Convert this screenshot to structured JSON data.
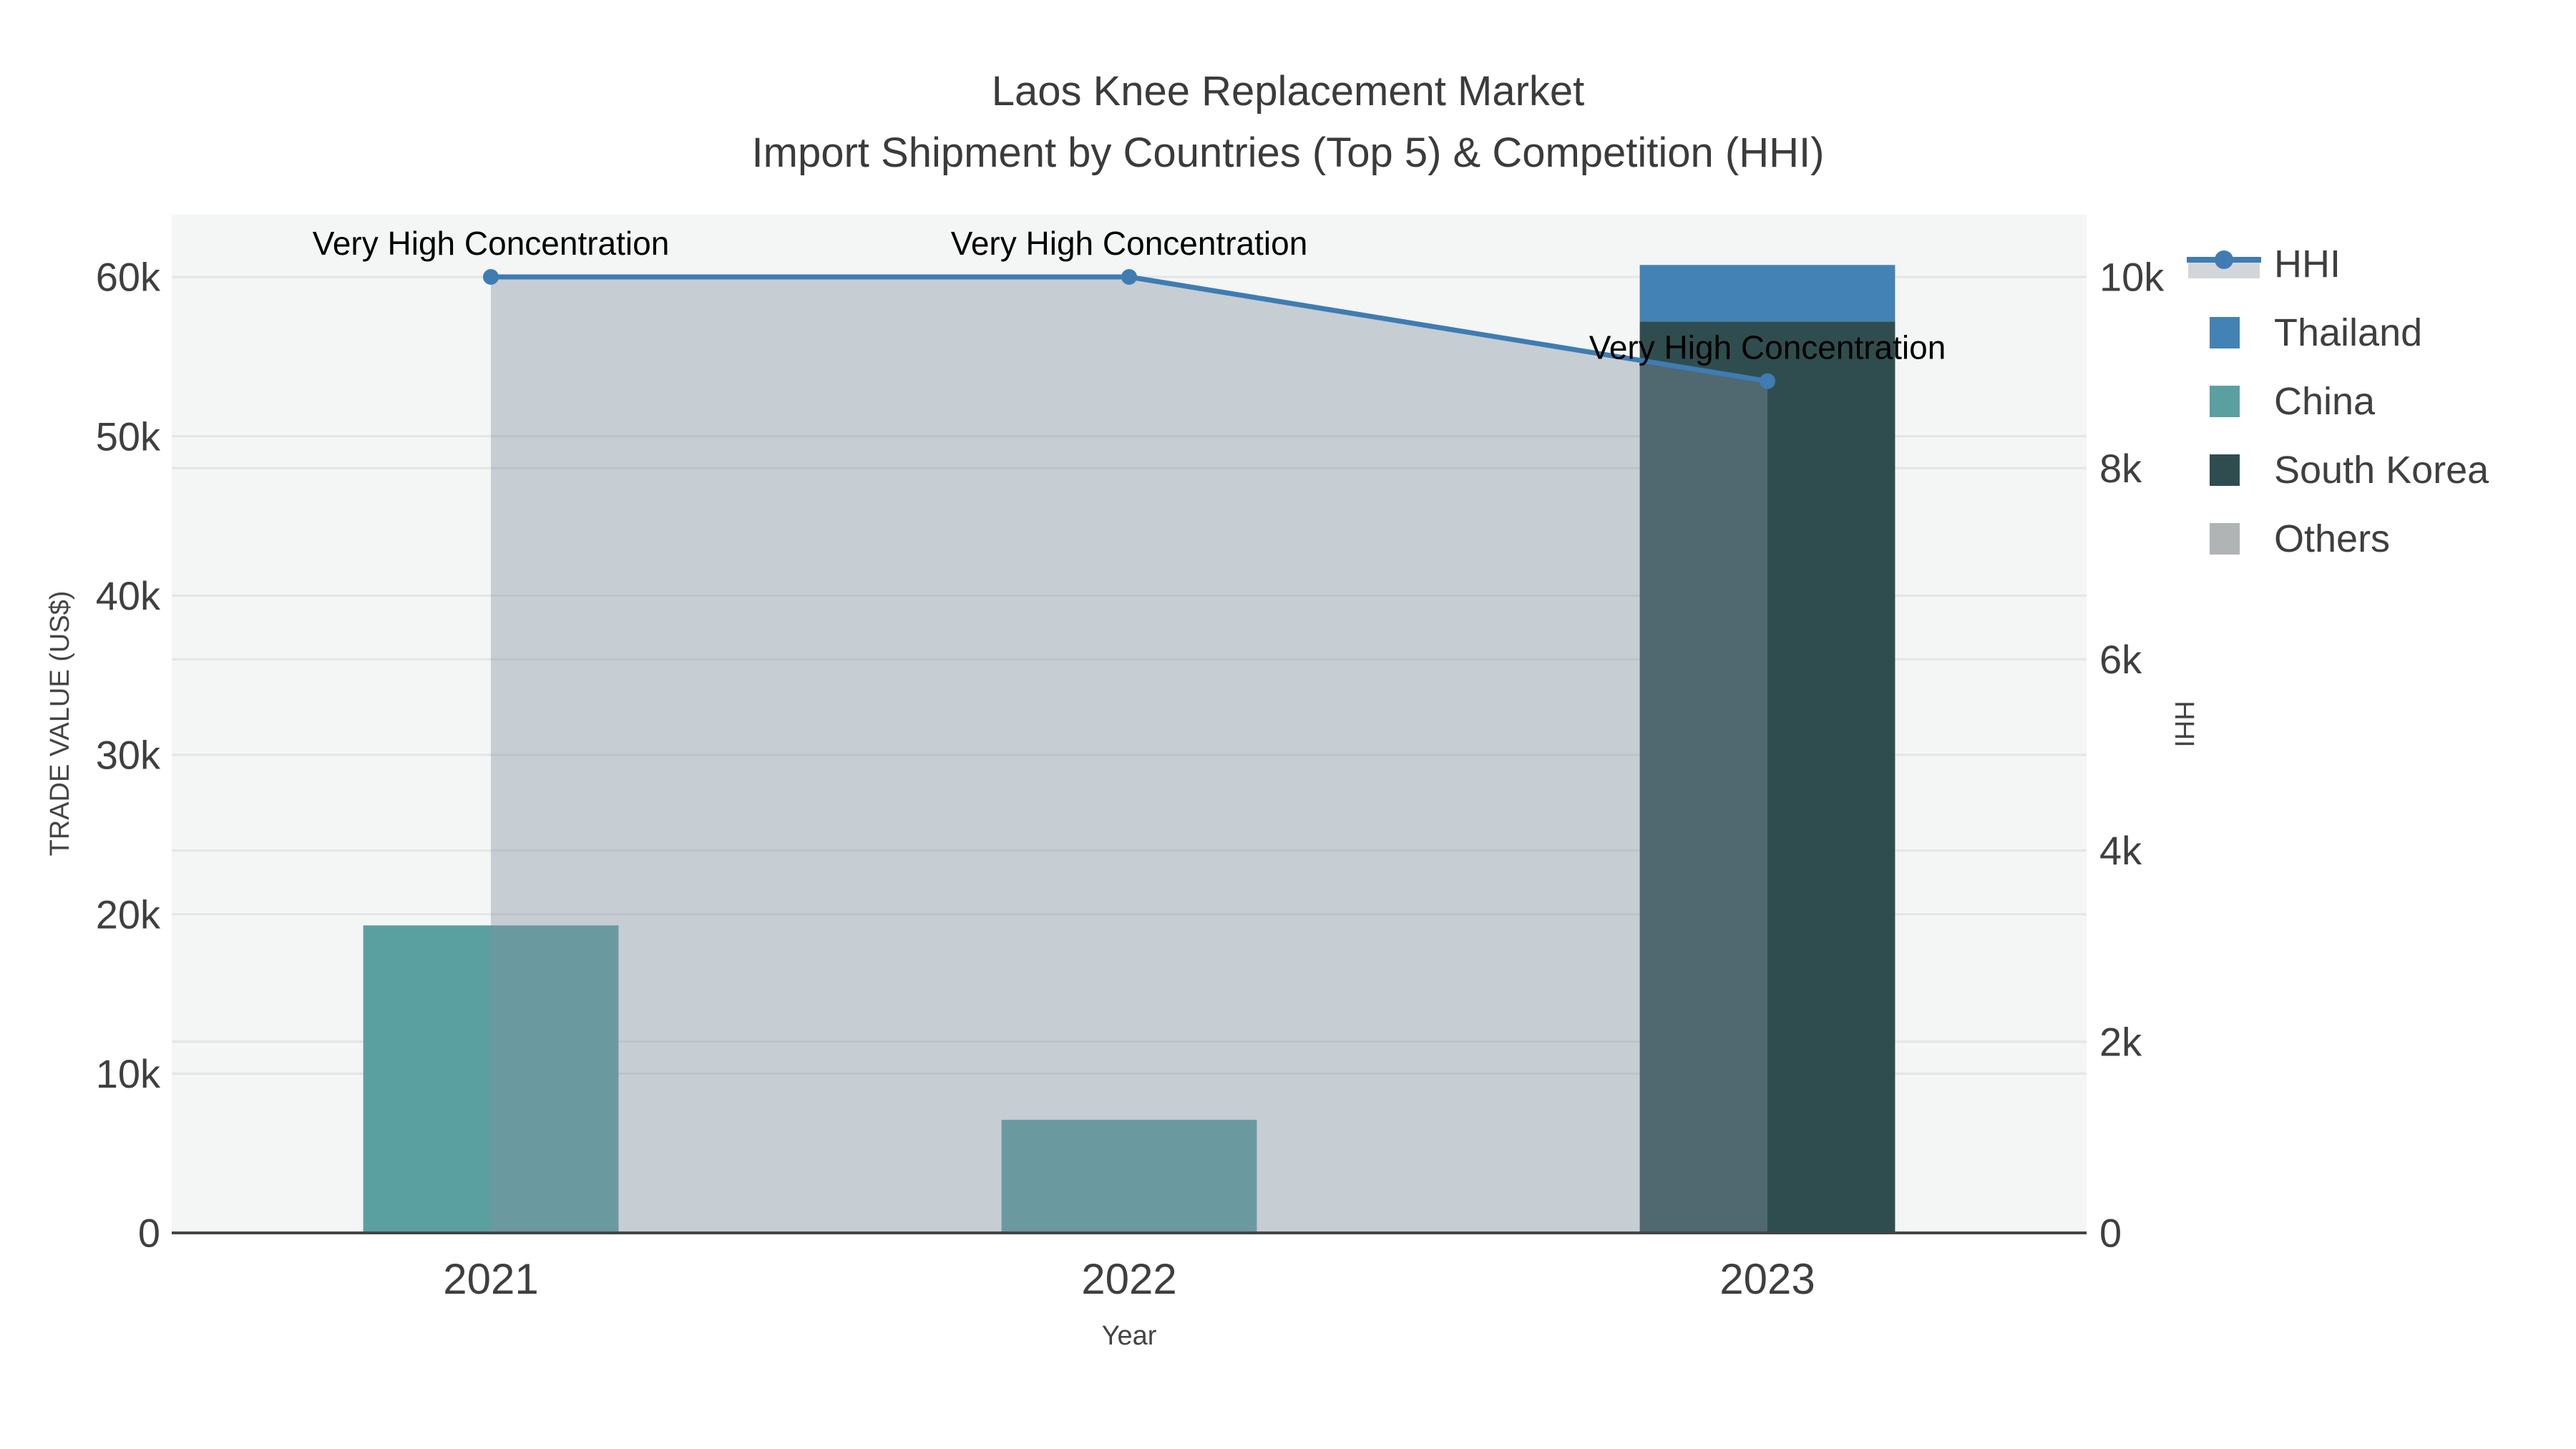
{
  "title": {
    "line1": "Laos Knee Replacement Market",
    "line2": "Import Shipment by Countries (Top 5) & Competition (HHI)"
  },
  "axes": {
    "left": {
      "title": "TRADE VALUE (US$)",
      "ticks": [
        {
          "label": "0",
          "value": 0
        },
        {
          "label": "10k",
          "value": 10000
        },
        {
          "label": "20k",
          "value": 20000
        },
        {
          "label": "30k",
          "value": 30000
        },
        {
          "label": "40k",
          "value": 40000
        },
        {
          "label": "50k",
          "value": 50000
        },
        {
          "label": "60k",
          "value": 60000
        }
      ]
    },
    "right": {
      "title": "HHI",
      "ticks": [
        {
          "label": "0",
          "value": 0
        },
        {
          "label": "2k",
          "value": 2000
        },
        {
          "label": "4k",
          "value": 4000
        },
        {
          "label": "6k",
          "value": 6000
        },
        {
          "label": "8k",
          "value": 8000
        },
        {
          "label": "10k",
          "value": 10000
        }
      ]
    },
    "x": {
      "title": "Year"
    }
  },
  "legend": {
    "items": [
      {
        "label": "HHI",
        "glyph": "line-marker",
        "line_color": "#3e7cb2",
        "band_color": "#d2d6db"
      },
      {
        "label": "Thailand",
        "glyph": "square",
        "color": "#4382b4"
      },
      {
        "label": "China",
        "glyph": "square",
        "color": "#5ba0a1"
      },
      {
        "label": "South Korea",
        "glyph": "square",
        "color": "#2f4d4f"
      },
      {
        "label": "Others",
        "glyph": "square",
        "color": "#b1b4b5"
      }
    ]
  },
  "annotations": [
    {
      "text": "Very High Concentration",
      "category": "2021"
    },
    {
      "text": "Very High Concentration",
      "category": "2022"
    },
    {
      "text": "Very High Concentration",
      "category": "2023"
    }
  ],
  "colors": {
    "background": "#ffffff",
    "plot_background": "#f4f5f5",
    "gridline": "#e3e5e6",
    "axis_line": "#444444",
    "hhi_line": "#3e7cb2",
    "hhi_area_fill": "rgba(130,144,160,0.40)",
    "thailand": "#4382b4",
    "china": "#5ba0a1",
    "south_korea": "#2f4d4f",
    "others": "#b1b4b5",
    "text": "#3f3f3f",
    "annotation_text": "#000000"
  },
  "chart_data": {
    "type": "combo-stacked-bar-line",
    "categories": [
      "2021",
      "2022",
      "2023"
    ],
    "bar_series": [
      {
        "name": "South Korea",
        "color": "#2f4d4f",
        "values": [
          0,
          0,
          57200
        ]
      },
      {
        "name": "China",
        "color": "#5ba0a1",
        "values": [
          19300,
          7100,
          0
        ]
      },
      {
        "name": "Thailand",
        "color": "#4382b4",
        "values": [
          0,
          0,
          3550
        ]
      },
      {
        "name": "Others",
        "color": "#b1b4b5",
        "values": [
          0,
          0,
          0
        ]
      }
    ],
    "line_series": {
      "name": "HHI",
      "axis": "right",
      "color": "#3e7cb2",
      "area_fill": "rgba(130,144,160,0.40)",
      "values": [
        10000,
        10000,
        8910
      ]
    },
    "title": "Laos Knee Replacement Market — Import Shipment by Countries (Top 5) & Competition (HHI)",
    "xlabel": "Year",
    "ylabel_left": "TRADE VALUE (US$)",
    "ylabel_right": "HHI",
    "ylim_left": [
      0,
      63900
    ],
    "ylim_right": [
      0,
      10650
    ],
    "grid": true,
    "legend_position": "top-right"
  }
}
